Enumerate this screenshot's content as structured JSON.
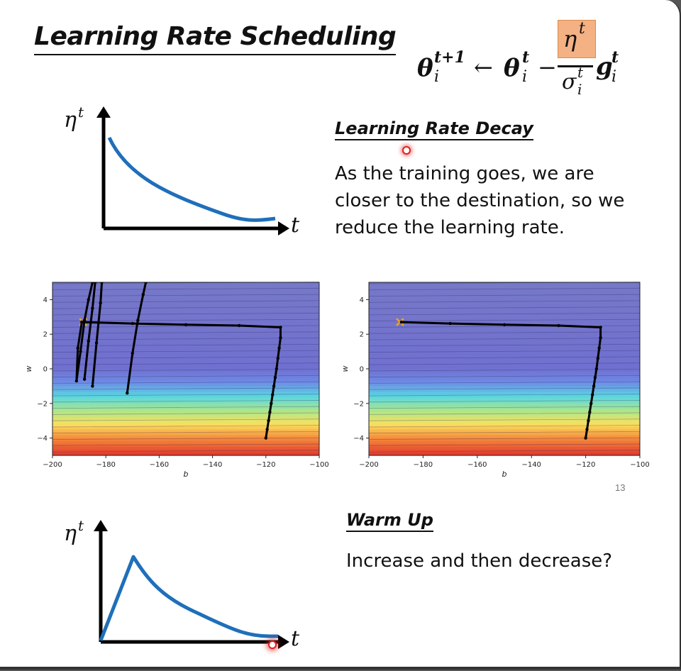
{
  "slide": {
    "title": "Learning Rate Scheduling",
    "page_number": "13",
    "formula": {
      "lhs_base": "θ",
      "lhs_sup": "t+1",
      "lhs_sub": "i",
      "arrow": "←",
      "rhs_base": "θ",
      "rhs_sup": "t",
      "rhs_sub": "i",
      "minus": "−",
      "num_base": "η",
      "num_sup": "t",
      "den_base": "σ",
      "den_sup": "t",
      "den_sub": "i",
      "g_base": "g",
      "g_sup": "t",
      "g_sub": "i",
      "highlight_color": "#f4b183"
    },
    "decay": {
      "heading": "Learning Rate Decay",
      "lines": [
        "As the training goes, we are",
        "closer to the destination, so we",
        "reduce the learning rate."
      ],
      "axis_y_base": "η",
      "axis_y_sup": "t",
      "axis_x": "t"
    },
    "warmup": {
      "heading": "Warm Up",
      "text": "Increase and then decrease?",
      "axis_y_base": "η",
      "axis_y_sup": "t",
      "axis_x": "t"
    },
    "colors": {
      "curve": "#1f6fba",
      "path": "#000000",
      "start_marker": "#f0a020",
      "pointer": "#e02020"
    }
  },
  "chart_data": [
    {
      "type": "contour",
      "xlabel": "b",
      "ylabel": "w",
      "xlim": [
        -200,
        -100
      ],
      "ylim": [
        -5,
        5
      ],
      "xticks": [
        "−200",
        "−180",
        "−160",
        "−140",
        "−120",
        "−100"
      ],
      "yticks": [
        "4",
        "2",
        "0",
        "−2",
        "−4"
      ],
      "series": [
        {
          "x": [
            -120,
            -119.5,
            -119,
            -118.5,
            -118,
            -117.5,
            -117,
            -116.5,
            -116,
            -115.5,
            -115,
            -114.5,
            -114.5,
            -130,
            -150,
            -170,
            -189
          ],
          "y": [
            -4,
            -3.5,
            -3,
            -2.5,
            -2,
            -1.5,
            -1,
            -0.5,
            0,
            0.6,
            1.2,
            1.8,
            2.4,
            2.5,
            2.55,
            2.62,
            2.7
          ]
        },
        {
          "x": [
            -189,
            -190.5,
            -191,
            -189.5,
            -188,
            -186.5,
            -185
          ],
          "y": [
            2.7,
            1.2,
            -0.7,
            1.0,
            2.8,
            4.0,
            5.0
          ]
        },
        {
          "x": [
            -188,
            -186.5,
            -185,
            -184
          ],
          "y": [
            -0.6,
            1.6,
            3.5,
            5.0
          ]
        },
        {
          "x": [
            -185,
            -183.5,
            -182,
            -181.5
          ],
          "y": [
            -1.0,
            1.5,
            3.8,
            5.0
          ]
        },
        {
          "x": [
            -172,
            -170,
            -168,
            -166,
            -165
          ],
          "y": [
            -1.4,
            0.9,
            2.8,
            4.3,
            5.0
          ]
        }
      ]
    },
    {
      "type": "contour",
      "xlabel": "b",
      "ylabel": "w",
      "xlim": [
        -200,
        -100
      ],
      "ylim": [
        -5,
        5
      ],
      "xticks": [
        "−200",
        "−180",
        "−160",
        "−140",
        "−120",
        "−100"
      ],
      "yticks": [
        "4",
        "2",
        "0",
        "−2",
        "−4"
      ],
      "series": [
        {
          "x": [
            -120,
            -119.5,
            -119,
            -118.5,
            -118,
            -117.5,
            -117,
            -116.5,
            -116,
            -115.5,
            -115,
            -114.5,
            -114.5,
            -130,
            -150,
            -170,
            -188
          ],
          "y": [
            -4,
            -3.5,
            -3,
            -2.5,
            -2,
            -1.5,
            -1,
            -0.5,
            0,
            0.6,
            1.2,
            1.8,
            2.4,
            2.5,
            2.55,
            2.62,
            2.7
          ]
        }
      ]
    }
  ]
}
